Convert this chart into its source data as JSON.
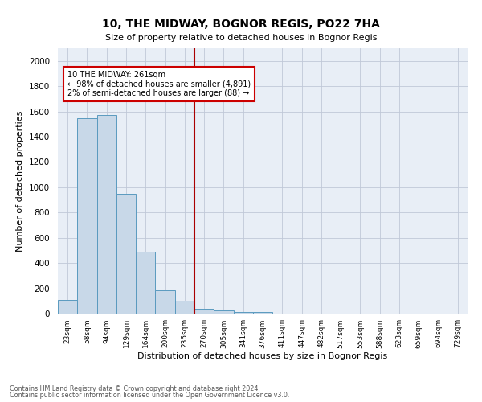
{
  "title": "10, THE MIDWAY, BOGNOR REGIS, PO22 7HA",
  "subtitle": "Size of property relative to detached houses in Bognor Regis",
  "xlabel": "Distribution of detached houses by size in Bognor Regis",
  "ylabel": "Number of detached properties",
  "footnote1": "Contains HM Land Registry data © Crown copyright and database right 2024.",
  "footnote2": "Contains public sector information licensed under the Open Government Licence v3.0.",
  "bin_labels": [
    "23sqm",
    "58sqm",
    "94sqm",
    "129sqm",
    "164sqm",
    "200sqm",
    "235sqm",
    "270sqm",
    "305sqm",
    "341sqm",
    "376sqm",
    "411sqm",
    "447sqm",
    "482sqm",
    "517sqm",
    "553sqm",
    "588sqm",
    "623sqm",
    "659sqm",
    "694sqm",
    "729sqm"
  ],
  "bar_heights": [
    110,
    1545,
    1570,
    950,
    490,
    185,
    100,
    38,
    25,
    15,
    13,
    0,
    0,
    0,
    0,
    0,
    0,
    0,
    0,
    0,
    0
  ],
  "bar_color": "#c8d8e8",
  "bar_edge_color": "#5a9abf",
  "vline_x_index": 7,
  "vline_color": "#aa0000",
  "annotation_text": "10 THE MIDWAY: 261sqm\n← 98% of detached houses are smaller (4,891)\n2% of semi-detached houses are larger (88) →",
  "annotation_box_color": "#ffffff",
  "annotation_box_edge": "#cc0000",
  "ylim": [
    0,
    2100
  ],
  "yticks": [
    0,
    200,
    400,
    600,
    800,
    1000,
    1200,
    1400,
    1600,
    1800,
    2000
  ],
  "grid_color": "#c0c8d8",
  "background_color": "#e8eef6",
  "title_fontsize": 10,
  "subtitle_fontsize": 8,
  "ylabel_fontsize": 8,
  "xlabel_fontsize": 8
}
